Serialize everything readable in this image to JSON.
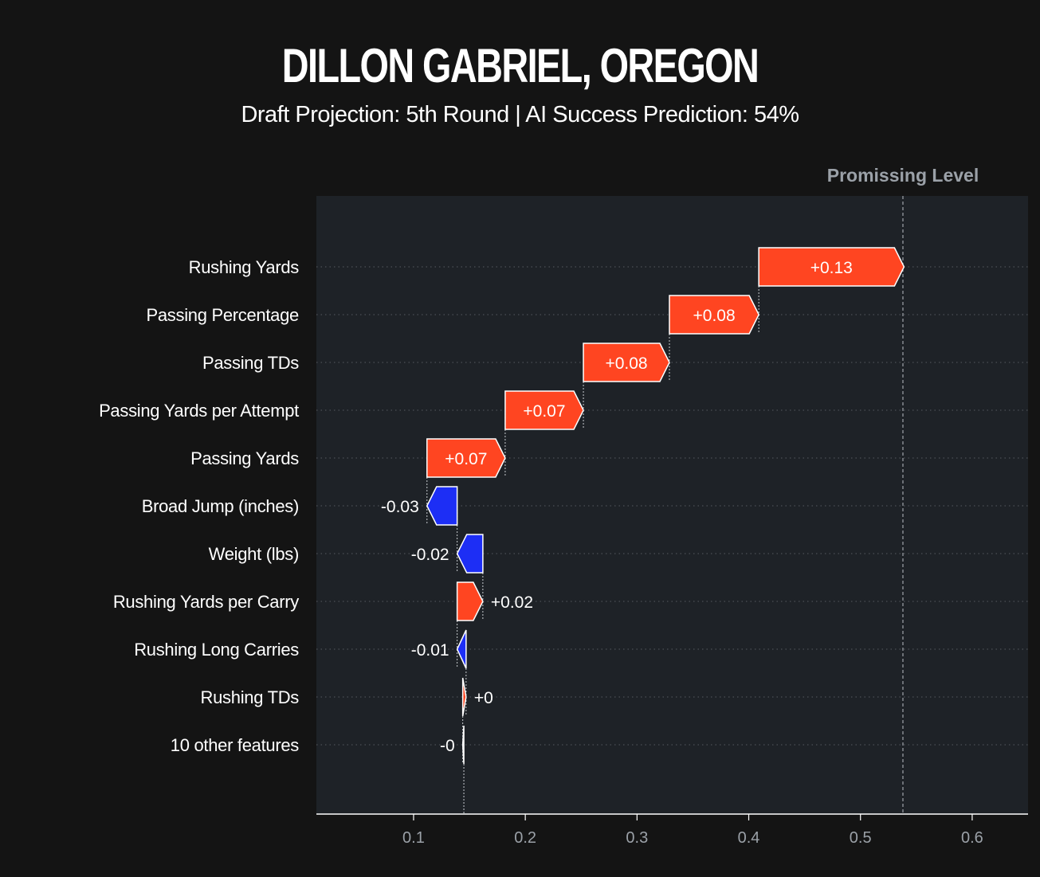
{
  "header": {
    "title": "DILLON GABRIEL, OREGON",
    "subtitle": "Draft Projection: 5th Round | AI Success Prediction: 54%"
  },
  "chart_data": {
    "type": "waterfall",
    "base_value": 0.145,
    "final_value": 0.538,
    "reference_line": {
      "label": "Promissing Level",
      "value": 0.538
    },
    "features": [
      {
        "name": "Rushing Yards",
        "value": 0.13,
        "label": "+0.13"
      },
      {
        "name": "Passing Percentage",
        "value": 0.08,
        "label": "+0.08"
      },
      {
        "name": "Passing TDs",
        "value": 0.077,
        "label": "+0.08"
      },
      {
        "name": "Passing Yards per Attempt",
        "value": 0.07,
        "label": "+0.07"
      },
      {
        "name": "Passing Yards",
        "value": 0.07,
        "label": "+0.07"
      },
      {
        "name": "Broad Jump (inches)",
        "value": -0.027,
        "label": "-0.03"
      },
      {
        "name": "Weight (lbs)",
        "value": -0.023,
        "label": "-0.02"
      },
      {
        "name": "Rushing Yards per Carry",
        "value": 0.023,
        "label": "+0.02"
      },
      {
        "name": "Rushing Long Carries",
        "value": -0.008,
        "label": "-0.01"
      },
      {
        "name": "Rushing TDs",
        "value": 0.003,
        "label": "+0"
      },
      {
        "name": "10 other features",
        "value": -0.001,
        "label": "-0"
      }
    ],
    "xlim": [
      0.013,
      0.65
    ],
    "xticks": [
      0.1,
      0.2,
      0.3,
      0.4,
      0.5,
      0.6
    ],
    "xtick_labels": [
      "0.1",
      "0.2",
      "0.3",
      "0.4",
      "0.5",
      "0.6"
    ],
    "colors": {
      "positive": "#ff4521",
      "negative": "#1d2ef5",
      "plot_background": "#1e2227",
      "page_background": "#141414",
      "grid": "#555a60",
      "text": "#ffffff",
      "muted": "#9ba1a8"
    }
  }
}
